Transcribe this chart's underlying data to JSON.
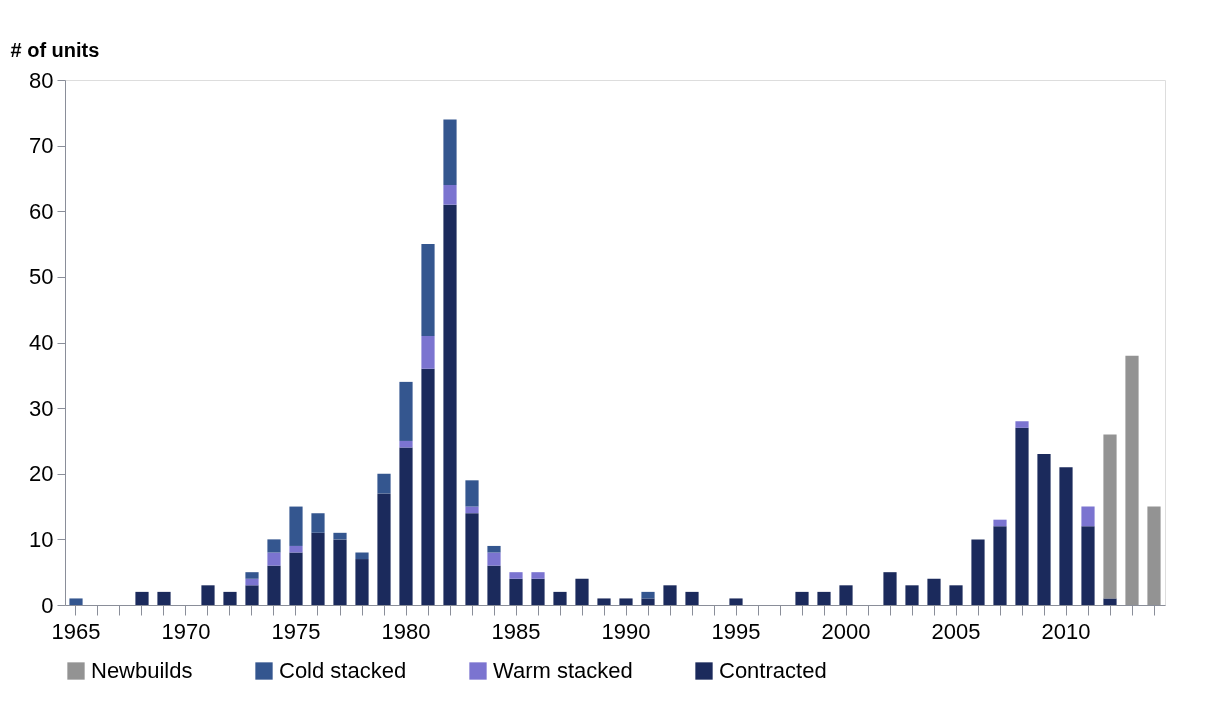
{
  "chart_data": {
    "type": "bar",
    "stacked": true,
    "ylabel": "# of units",
    "categories": [
      "1965",
      null,
      null,
      null,
      null,
      "1970",
      null,
      null,
      null,
      null,
      "1975",
      null,
      null,
      null,
      null,
      "1980",
      null,
      null,
      null,
      null,
      "1985",
      null,
      null,
      null,
      null,
      "1990",
      null,
      null,
      null,
      null,
      "1995",
      null,
      null,
      null,
      null,
      "2000",
      null,
      null,
      null,
      null,
      "2005",
      null,
      null,
      null,
      null,
      "2010",
      null,
      null,
      null,
      null
    ],
    "series": [
      {
        "name": "Contracted",
        "color": "#1b2a5c",
        "values": [
          null,
          null,
          null,
          2,
          2,
          null,
          3,
          2,
          3,
          6,
          8,
          11,
          10,
          7,
          17,
          24,
          36,
          61,
          14,
          6,
          4,
          4,
          2,
          4,
          1,
          1,
          1,
          3,
          2,
          null,
          1,
          null,
          null,
          2,
          2,
          3,
          null,
          5,
          3,
          4,
          3,
          10,
          12,
          27,
          23,
          21,
          12,
          1,
          null,
          null
        ]
      },
      {
        "name": "Warm stacked",
        "color": "#7b74d0",
        "values": [
          null,
          null,
          null,
          null,
          null,
          null,
          null,
          null,
          1,
          2,
          1,
          null,
          null,
          null,
          null,
          1,
          5,
          3,
          1,
          2,
          1,
          1,
          null,
          null,
          null,
          null,
          null,
          null,
          null,
          null,
          null,
          null,
          null,
          null,
          null,
          null,
          null,
          null,
          null,
          null,
          null,
          null,
          1,
          1,
          null,
          null,
          3,
          null,
          null,
          null
        ]
      },
      {
        "name": "Cold stacked",
        "color": "#34568f",
        "values": [
          1,
          null,
          null,
          null,
          null,
          null,
          null,
          null,
          1,
          2,
          6,
          3,
          1,
          1,
          3,
          9,
          14,
          10,
          4,
          1,
          null,
          null,
          null,
          null,
          null,
          null,
          1,
          null,
          null,
          null,
          null,
          null,
          null,
          null,
          null,
          null,
          null,
          null,
          null,
          null,
          null,
          null,
          null,
          null,
          null,
          null,
          null,
          null,
          null,
          null
        ]
      },
      {
        "name": "Newbuilds",
        "color": "#939393",
        "values": [
          null,
          null,
          null,
          null,
          null,
          null,
          null,
          null,
          null,
          null,
          null,
          null,
          null,
          null,
          null,
          null,
          null,
          null,
          null,
          null,
          null,
          null,
          null,
          null,
          null,
          null,
          null,
          null,
          null,
          null,
          null,
          null,
          null,
          null,
          null,
          null,
          null,
          null,
          null,
          null,
          null,
          null,
          null,
          null,
          null,
          null,
          null,
          25,
          38,
          15
        ]
      }
    ],
    "ylim": [
      0,
      80
    ],
    "yticks": [
      0,
      10,
      20,
      30,
      40,
      50,
      60,
      70,
      80
    ],
    "grid": false,
    "legend": "bottom"
  }
}
